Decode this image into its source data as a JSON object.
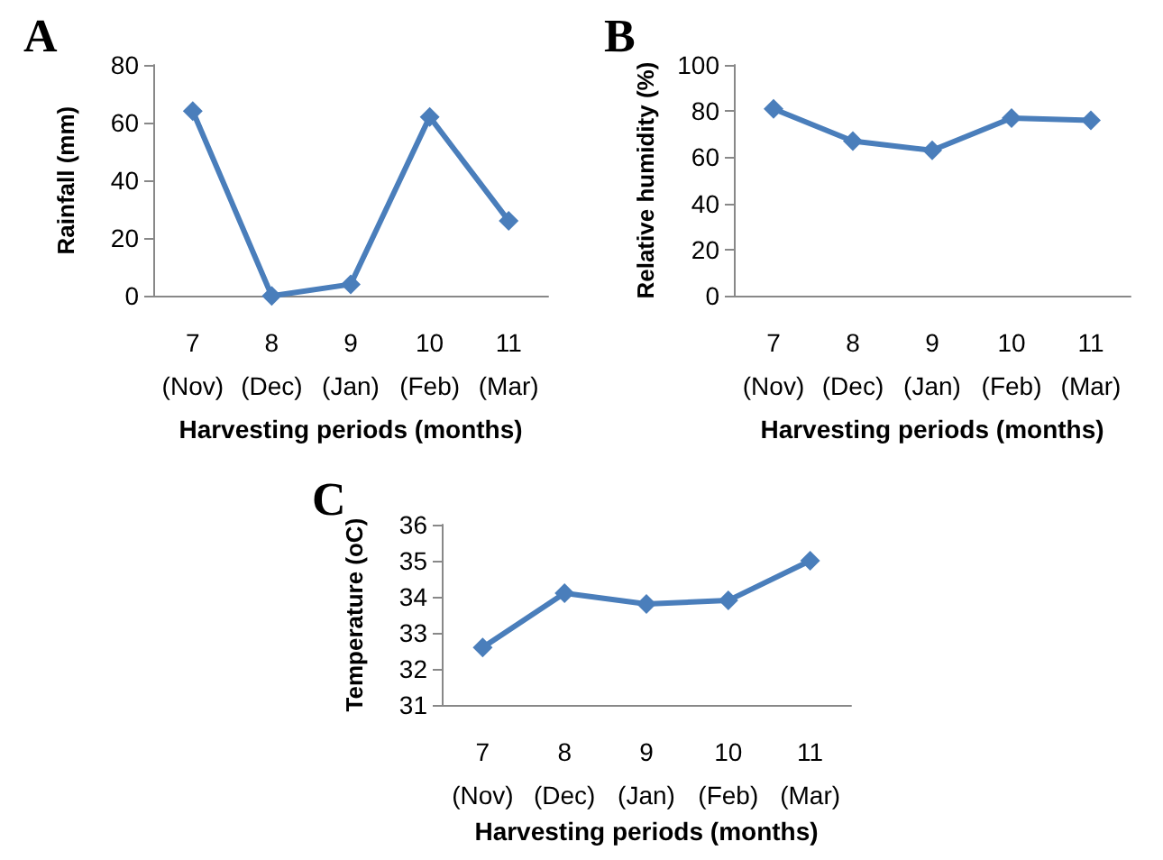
{
  "chart_data": [
    {
      "type": "line",
      "title": "A",
      "xlabel": "Harvesting periods (months)",
      "ylabel": "Rainfall (mm)",
      "categories": [
        "7\n(Nov)",
        "8\n(Dec)",
        "9\n(Jan)",
        "10\n(Feb)",
        "11\n(Mar)"
      ],
      "series": [
        {
          "color": "#4a7ebb",
          "values": [
            64,
            0,
            4,
            62,
            26
          ]
        }
      ],
      "ylim": [
        0,
        80
      ],
      "yticks": [
        0,
        20,
        40,
        60,
        80
      ],
      "grid": false,
      "marker": "diamond",
      "line_style": "solid"
    },
    {
      "type": "line",
      "title": "B",
      "xlabel": "Harvesting periods (months)",
      "ylabel": "Relative humidity (%)",
      "categories": [
        "7\n(Nov)",
        "8\n(Dec)",
        "9\n(Jan)",
        "10\n(Feb)",
        "11\n(Mar)"
      ],
      "series": [
        {
          "color": "#4a7ebb",
          "values": [
            81,
            67,
            63,
            77,
            76
          ]
        }
      ],
      "ylim": [
        0,
        100
      ],
      "yticks": [
        0,
        20,
        40,
        60,
        80,
        100
      ],
      "grid": false,
      "marker": "diamond",
      "line_style": "solid"
    },
    {
      "type": "line",
      "title": "C",
      "xlabel": "Harvesting periods (months)",
      "ylabel": "Temperature (oC)",
      "categories": [
        "7\n(Nov)",
        "8\n(Dec)",
        "9\n(Jan)",
        "10\n(Feb)",
        "11\n(Mar)"
      ],
      "series": [
        {
          "color": "#4a7ebb",
          "values": [
            32.6,
            34.1,
            33.8,
            33.9,
            35.0
          ]
        }
      ],
      "ylim": [
        31,
        36
      ],
      "yticks": [
        31,
        32,
        33,
        34,
        35,
        36
      ],
      "grid": false,
      "marker": "diamond",
      "line_style": "solid"
    }
  ]
}
